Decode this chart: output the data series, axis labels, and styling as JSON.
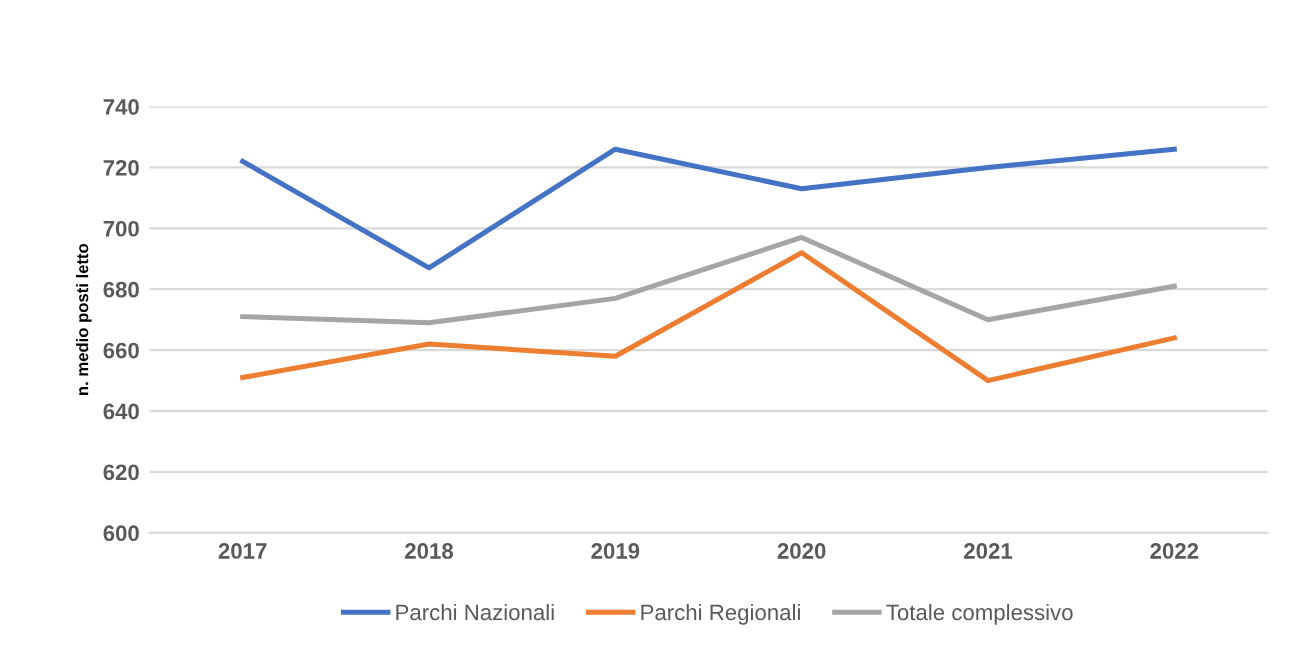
{
  "chart_data": {
    "type": "line",
    "ylabel": "n. medio posti letto",
    "categories": [
      "2017",
      "2018",
      "2019",
      "2020",
      "2021",
      "2022"
    ],
    "series": [
      {
        "name": "Parchi Nazionali",
        "color": "#4472c4",
        "values": [
          722,
          687,
          726,
          713,
          720,
          726
        ]
      },
      {
        "name": "Parchi Regionali",
        "color": "#ed7d31",
        "values": [
          651,
          662,
          658,
          692,
          650,
          664
        ]
      },
      {
        "name": "Totale complessivo",
        "color": "#a5a5a5",
        "values": [
          671,
          669,
          677,
          697,
          670,
          681
        ]
      }
    ],
    "ylim": [
      600,
      740
    ],
    "yticks": [
      600,
      620,
      640,
      660,
      680,
      700,
      720,
      740
    ],
    "grid": "y",
    "legend": "bottom",
    "marker": "none",
    "line_style": "solid"
  }
}
